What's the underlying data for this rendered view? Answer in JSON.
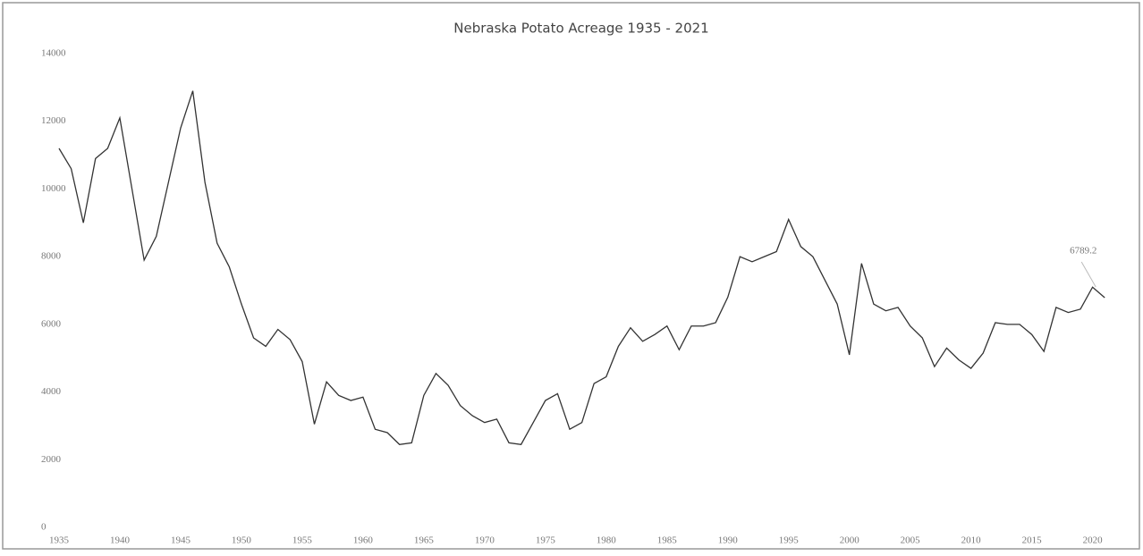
{
  "chart_data": {
    "type": "line",
    "title": "Nebraska Potato Acreage 1935 - 2021",
    "x": [
      1935,
      1936,
      1937,
      1938,
      1939,
      1940,
      1941,
      1942,
      1943,
      1944,
      1945,
      1946,
      1947,
      1948,
      1949,
      1950,
      1951,
      1952,
      1953,
      1954,
      1955,
      1956,
      1957,
      1958,
      1959,
      1960,
      1961,
      1962,
      1963,
      1964,
      1965,
      1966,
      1967,
      1968,
      1969,
      1970,
      1971,
      1972,
      1973,
      1974,
      1975,
      1976,
      1977,
      1978,
      1979,
      1980,
      1981,
      1982,
      1983,
      1984,
      1985,
      1986,
      1987,
      1988,
      1989,
      1990,
      1991,
      1992,
      1993,
      1994,
      1995,
      1996,
      1997,
      1998,
      1999,
      2000,
      2001,
      2002,
      2003,
      2004,
      2005,
      2006,
      2007,
      2008,
      2009,
      2010,
      2011,
      2012,
      2013,
      2014,
      2015,
      2016,
      2017,
      2018,
      2019,
      2020,
      2021
    ],
    "series": [
      {
        "color": "#333333",
        "values": [
          11200,
          10600,
          9000,
          10900,
          11200,
          12100,
          10000,
          7900,
          8600,
          10200,
          11800,
          12900,
          10200,
          8400,
          7700,
          6600,
          5600,
          5350,
          5850,
          5550,
          4900,
          3050,
          4300,
          3900,
          3750,
          3850,
          2900,
          2800,
          2450,
          2500,
          3900,
          4550,
          4200,
          3600,
          3300,
          3100,
          3200,
          2500,
          2450,
          3100,
          3750,
          3950,
          2900,
          3100,
          4250,
          4450,
          5350,
          5900,
          5500,
          5700,
          5950,
          5250,
          5950,
          5950,
          6050,
          6800,
          8000,
          7850,
          8000,
          8150,
          9100,
          8300,
          8000,
          7300,
          6600,
          5100,
          7800,
          6600,
          6400,
          6500,
          5950,
          5600,
          4750,
          5300,
          4950,
          4700,
          5150,
          6050,
          6000,
          6000,
          5700,
          5200,
          6500,
          6350,
          6450,
          7100,
          6789.2
        ]
      }
    ],
    "xlim": [
      1935,
      2021.5
    ],
    "xticks": [
      1935,
      1940,
      1945,
      1950,
      1955,
      1960,
      1965,
      1970,
      1975,
      1980,
      1985,
      1990,
      1995,
      2000,
      2005,
      2010,
      2015,
      2020
    ],
    "ylim": [
      0,
      14000
    ],
    "yticks": [
      0,
      2000,
      4000,
      6000,
      8000,
      10000,
      12000,
      14000
    ],
    "grid": false
  }
}
